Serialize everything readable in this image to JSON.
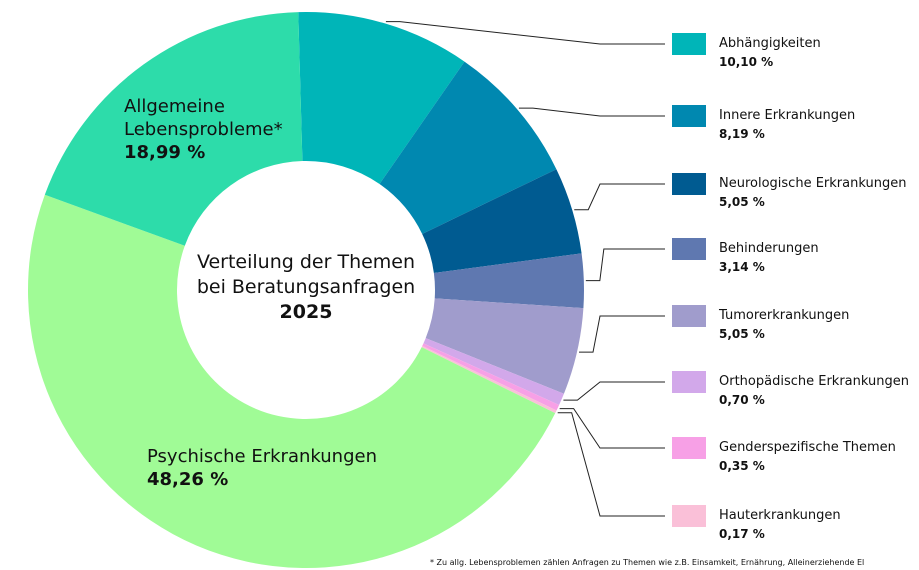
{
  "chart_data": {
    "type": "pie",
    "title": "Verteilung der Themen bei Beratungsanfragen",
    "subtitle": "2025",
    "categories": [
      "Abhängigkeiten",
      "Innere Erkrankungen",
      "Neurologische Erkrankungen",
      "Behinderungen",
      "Tumorerkrankungen",
      "Orthopädische Erkrankungen",
      "Genderspezifische Themen",
      "Hauterkrankungen",
      "Psychische Erkrankungen",
      "Allgemeine Lebensprobleme*"
    ],
    "values": [
      10.1,
      8.19,
      5.05,
      3.14,
      5.05,
      0.7,
      0.35,
      0.17,
      48.26,
      18.99
    ],
    "value_labels": [
      "10,10 %",
      "8,19 %",
      "5,05 %",
      "3,14 %",
      "5,05 %",
      "0,70 %",
      "0,35 %",
      "0,17 %",
      "48,26 %",
      "18,99 %"
    ],
    "colors": [
      "#00b5b8",
      "#0088b0",
      "#005b91",
      "#5f78b0",
      "#a09ccc",
      "#d2a8ea",
      "#f7a0e6",
      "#fac0d8",
      "#a0fb96",
      "#2ddcaa"
    ],
    "footnote": "* Zu allg. Lebensproblemen zählen Anfragen zu Themen wie z.B. Einsamkeit, Ernährung, Alleinerziehende El"
  }
}
